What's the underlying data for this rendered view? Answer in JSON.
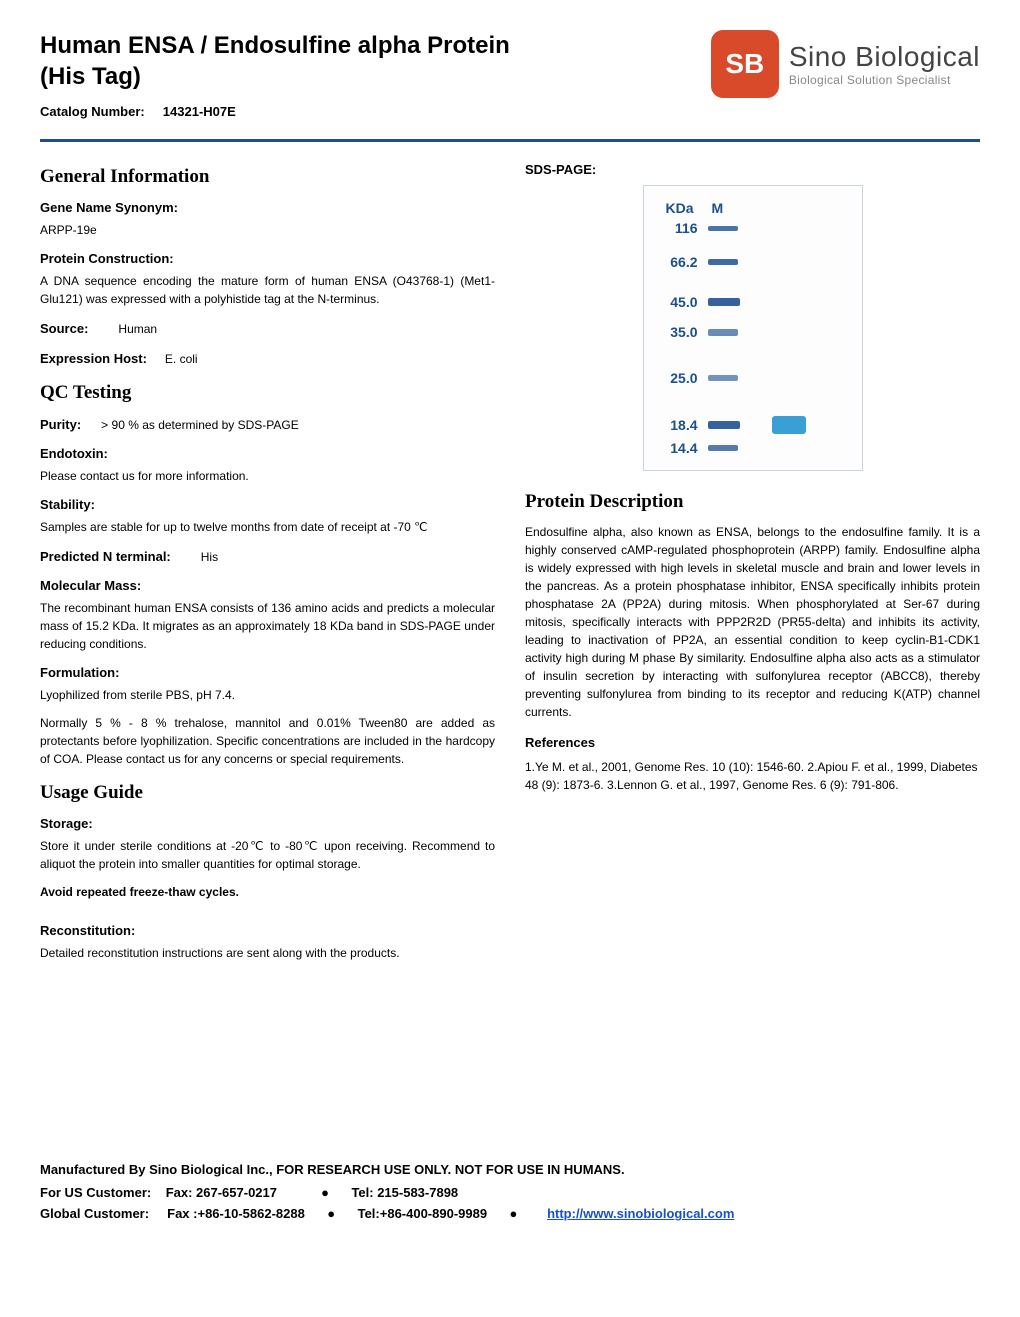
{
  "header": {
    "title_line1": "Human ENSA / Endosulfine alpha Protein",
    "title_line2": "(His Tag)",
    "catalog_label": "Catalog Number:",
    "catalog_number": "14321-H07E",
    "logo_letters": "SB",
    "logo_main": "Sino Biological",
    "logo_sub": "Biological Solution Specialist"
  },
  "left": {
    "general_info": "General Information",
    "gene_syn_label": "Gene Name Synonym:",
    "gene_syn_value": "ARPP-19e",
    "construction_label": "Protein Construction:",
    "construction_value": "A DNA sequence encoding the mature form of human ENSA (O43768-1) (Met1-Glu121) was expressed with a polyhistide tag at the N-terminus.",
    "source_label": "Source:",
    "source_value": "Human",
    "host_label": "Expression Host:",
    "host_value": "E. coli",
    "qc_heading": "QC Testing",
    "purity_label": "Purity:",
    "purity_value": "> 90 % as determined by SDS-PAGE",
    "endotoxin_label": "Endotoxin:",
    "endotoxin_value": "Please contact us for more information.",
    "stability_label": "Stability:",
    "stability_value": "Samples are stable for up to twelve months from date of receipt  at -70 ℃",
    "nterm_label": "Predicted N terminal:",
    "nterm_value": "His",
    "mass_label": "Molecular Mass:",
    "mass_value": "The recombinant human ENSA consists of 136 amino acids and predicts a molecular mass of 15.2 KDa. It migrates as an approximately 18 KDa band in SDS-PAGE under reducing conditions.",
    "formulation_label": "Formulation:",
    "formulation_value1": "Lyophilized from sterile PBS, pH 7.4.",
    "formulation_value2": "Normally 5 % - 8 % trehalose, mannitol and 0.01% Tween80 are added as protectants before lyophilization. Specific concentrations are included in the hardcopy of COA. Please contact us for any concerns or special requirements.",
    "usage_heading": "Usage Guide",
    "storage_label": "Storage:",
    "storage_value": "Store it under sterile conditions at -20℃ to -80℃ upon receiving. Recommend to aliquot the protein into smaller quantities for optimal storage.",
    "avoid_note": "Avoid repeated freeze-thaw cycles.",
    "recon_label": "Reconstitution:",
    "recon_value": "Detailed reconstitution instructions are sent along with the products."
  },
  "right": {
    "sds_label": "SDS-PAGE:",
    "gel": {
      "header_kda": "KDa",
      "header_m": "M",
      "label_color": "#1a4f8a",
      "marker_color": "#2a5a9a",
      "sample_color": "#3a9fd4",
      "rows": [
        {
          "kda": "116",
          "gap": 4,
          "marker_w": 30,
          "marker_h": 5,
          "opacity": 0.85
        },
        {
          "kda": "66.2",
          "gap": 18,
          "marker_w": 30,
          "marker_h": 6,
          "opacity": 0.9
        },
        {
          "kda": "45.0",
          "gap": 24,
          "marker_w": 32,
          "marker_h": 8,
          "opacity": 0.95
        },
        {
          "kda": "35.0",
          "gap": 14,
          "marker_w": 30,
          "marker_h": 7,
          "opacity": 0.7
        },
        {
          "kda": "25.0",
          "gap": 30,
          "marker_w": 30,
          "marker_h": 6,
          "opacity": 0.65
        },
        {
          "kda": "18.4",
          "gap": 30,
          "marker_w": 32,
          "marker_h": 8,
          "opacity": 0.95,
          "sample": true,
          "sample_w": 34,
          "sample_h": 18
        },
        {
          "kda": "14.4",
          "gap": 6,
          "marker_w": 30,
          "marker_h": 6,
          "opacity": 0.8
        }
      ]
    },
    "desc_heading": "Protein Description",
    "desc_text": "Endosulfine alpha, also known as ENSA, belongs to the endosulfine family. It is a highly conserved cAMP-regulated phosphoprotein (ARPP) family. Endosulfine alpha is widely expressed with high levels in skeletal muscle and brain and lower levels in the pancreas. As a protein phosphatase inhibitor, ENSA specifically inhibits protein phosphatase 2A (PP2A) during mitosis. When phosphorylated at Ser-67 during mitosis, specifically interacts with PPP2R2D (PR55-delta) and inhibits its activity, leading to inactivation of PP2A, an essential condition to keep cyclin-B1-CDK1 activity high during M phase By similarity. Endosulfine alpha also acts as a stimulator of insulin secretion by interacting with sulfonylurea receptor (ABCC8), thereby preventing sulfonylurea from binding to its receptor and reducing K(ATP) channel currents.",
    "refs_heading": "References",
    "refs_text": "1.Ye M. et al., 2001, Genome Res. 10 (10): 1546-60. 2.Apiou F. et al., 1999, Diabetes 48 (9): 1873-6. 3.Lennon G. et al., 1997, Genome Res. 6 (9): 791-806."
  },
  "footer": {
    "line1": "Manufactured By Sino Biological Inc.,  FOR RESEARCH USE ONLY. NOT FOR USE IN HUMANS.",
    "us_label": "For US Customer:",
    "us_fax": "Fax: 267-657-0217",
    "us_tel": "Tel:  215-583-7898",
    "global_label": "Global Customer:",
    "global_fax": "Fax :+86-10-5862-8288",
    "global_tel": "Tel:+86-400-890-9989",
    "url": "http://www.sinobiological.com",
    "bullet": "●"
  }
}
